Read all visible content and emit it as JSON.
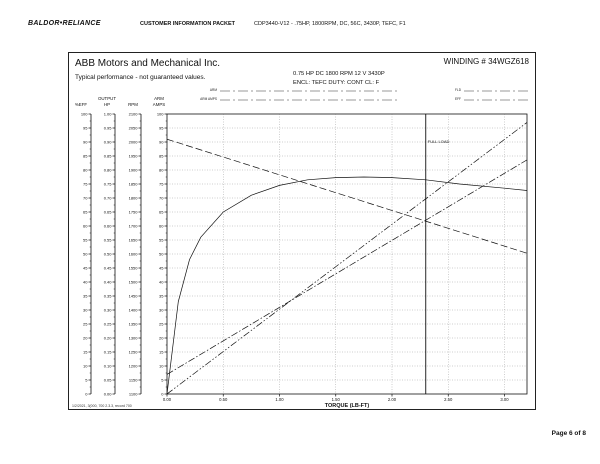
{
  "header": {
    "brand": "BALDOR•RELIANCE",
    "packet": "CUSTOMER INFORMATION PACKET",
    "spec": "CDP3440-V12 - .75HP, 1800RPM, DC, 56C, 3430P, TEFC, F1"
  },
  "sheet": {
    "company": "ABB Motors and Mechanical Inc.",
    "winding": "WINDING # 34WGZ618",
    "disclaimer": "Typical performance - not guaranteed values.",
    "rating_line1": "0.75 HP  DC  1800 RPM  12 V  3430P",
    "rating_line2": "ENCL: TEFC  DUTY: CONT  CL: F",
    "field_labels": [
      "ARM",
      "ARM AMPS",
      "FLD",
      "EFF"
    ],
    "full_load": "FULL LOAD",
    "footer_note": "1/2/2021, 3(000, 700 2.3.3, record 700"
  },
  "chart_data": {
    "type": "line",
    "xlabel": "TORQUE (LB-FT)",
    "x_ticks": [
      "0.00",
      "0.50",
      "1.00",
      "1.50",
      "2.00",
      "2.50",
      "3.00"
    ],
    "xlim": [
      0,
      3.2
    ],
    "axis_headers": [
      {
        "top": "",
        "bottom": "%EFF"
      },
      {
        "top": "OUTPUT",
        "bottom": "HP"
      },
      {
        "top": "",
        "bottom": "RPM"
      },
      {
        "top": "ARM",
        "bottom": "AMPS"
      }
    ],
    "scales": {
      "eff": [
        "100",
        "95",
        "90",
        "85",
        "80",
        "75",
        "70",
        "65",
        "60",
        "55",
        "50",
        "45",
        "40",
        "35",
        "30",
        "25",
        "20",
        "15",
        "10",
        "5",
        "0"
      ],
      "hp": [
        "1.00",
        "0.95",
        "0.90",
        "0.85",
        "0.80",
        "0.75",
        "0.70",
        "0.65",
        "0.60",
        "0.55",
        "0.50",
        "0.45",
        "0.40",
        "0.35",
        "0.30",
        "0.25",
        "0.20",
        "0.15",
        "0.10",
        "0.05",
        "0.00"
      ],
      "rpm": [
        "2100",
        "2050",
        "2000",
        "1950",
        "1900",
        "1850",
        "1800",
        "1750",
        "1700",
        "1650",
        "1600",
        "1550",
        "1500",
        "1450",
        "1400",
        "1350",
        "1300",
        "1250",
        "1200",
        "1150",
        "1100"
      ],
      "amps": [
        "100",
        "95",
        "90",
        "85",
        "80",
        "75",
        "70",
        "65",
        "60",
        "55",
        "50",
        "45",
        "40",
        "35",
        "30",
        "25",
        "20",
        "15",
        "10",
        "5",
        "0"
      ]
    },
    "full_load_torque": 2.3,
    "series": [
      {
        "style": "solid",
        "points": [
          [
            0,
            0
          ],
          [
            0.1,
            33
          ],
          [
            0.2,
            48
          ],
          [
            0.3,
            56
          ],
          [
            0.5,
            65
          ],
          [
            0.75,
            71
          ],
          [
            1.0,
            74.5
          ],
          [
            1.25,
            76.5
          ],
          [
            1.5,
            77.3
          ],
          [
            1.75,
            77.5
          ],
          [
            2.0,
            77.3
          ],
          [
            2.3,
            76.5
          ],
          [
            2.6,
            75
          ],
          [
            3.0,
            73.5
          ],
          [
            3.3,
            72.3
          ]
        ]
      },
      {
        "style": "long-dash",
        "points": [
          [
            0,
            91
          ],
          [
            3.3,
            49
          ]
        ]
      },
      {
        "style": "dash-dot",
        "points": [
          [
            0,
            7
          ],
          [
            3.3,
            86
          ]
        ]
      },
      {
        "style": "dash-dot-dot",
        "points": [
          [
            0,
            0
          ],
          [
            3.3,
            100
          ]
        ]
      }
    ]
  }
}
